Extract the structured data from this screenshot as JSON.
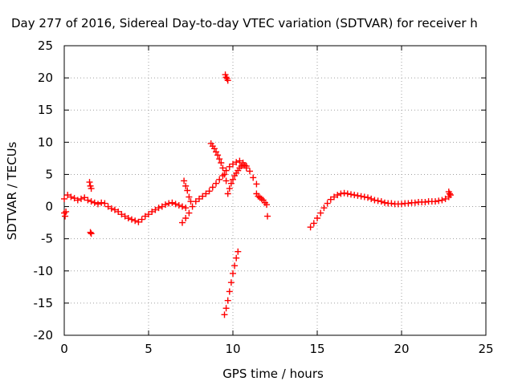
{
  "chart_data": {
    "type": "scatter",
    "title": "Day 277 of 2016, Sidereal Day-to-day VTEC variation (SDTVAR) for receiver h",
    "xlabel": "GPS time / hours",
    "ylabel": "SDTVAR / TECUs",
    "xlim": [
      0,
      25
    ],
    "ylim": [
      -20,
      25
    ],
    "xticks": [
      0,
      5,
      10,
      15,
      20,
      25
    ],
    "yticks": [
      -20,
      -15,
      -10,
      -5,
      0,
      5,
      10,
      15,
      20,
      25
    ],
    "xtick_labels": [
      "0",
      "5",
      "10",
      "15",
      "20",
      "25"
    ],
    "ytick_labels": [
      "-20",
      "-15",
      "-10",
      "-5",
      "0",
      "5",
      "10",
      "15",
      "20",
      "25"
    ],
    "grid": true,
    "marker": "plus",
    "color": "#ff0000",
    "segments": [
      {
        "x": [
          0.0,
          0.2,
          0.4,
          0.6,
          0.8,
          1.0,
          1.2,
          1.4,
          1.6,
          1.8,
          2.0,
          2.2,
          2.4,
          2.6,
          2.8,
          3.0,
          3.2,
          3.4,
          3.6,
          3.8,
          4.0,
          4.2,
          4.4,
          4.6,
          4.8,
          5.0,
          5.2,
          5.4,
          5.6,
          5.8,
          6.0,
          6.2,
          6.4,
          6.6,
          6.8,
          7.0,
          7.2
        ],
        "y": [
          1.2,
          1.8,
          1.5,
          1.3,
          1.0,
          1.2,
          1.4,
          1.0,
          0.8,
          0.6,
          0.4,
          0.6,
          0.5,
          0.0,
          -0.3,
          -0.5,
          -0.8,
          -1.2,
          -1.5,
          -1.8,
          -2.0,
          -2.2,
          -2.4,
          -2.0,
          -1.5,
          -1.2,
          -0.8,
          -0.5,
          -0.2,
          0.0,
          0.3,
          0.5,
          0.6,
          0.4,
          0.2,
          0.0,
          -0.2
        ]
      },
      {
        "x": [
          0.0,
          0.05,
          0.1
        ],
        "y": [
          -1.0,
          -1.5,
          -0.8
        ]
      },
      {
        "x": [
          1.5,
          1.55,
          1.6
        ],
        "y": [
          3.8,
          3.2,
          2.8
        ]
      },
      {
        "x": [
          1.55,
          1.6
        ],
        "y": [
          -4.0,
          -4.2
        ]
      },
      {
        "x": [
          7.1,
          7.2,
          7.3,
          7.4,
          7.5
        ],
        "y": [
          4.0,
          3.2,
          2.5,
          1.5,
          0.8
        ]
      },
      {
        "x": [
          7.0,
          7.2,
          7.4,
          7.6,
          7.8,
          8.0,
          8.2,
          8.4,
          8.6,
          8.8,
          9.0,
          9.2,
          9.4,
          9.6,
          9.8,
          10.0,
          10.2,
          10.4,
          10.6,
          10.8,
          11.0,
          11.2,
          11.4
        ],
        "y": [
          -2.5,
          -1.8,
          -1.0,
          0.0,
          0.8,
          1.2,
          1.6,
          2.0,
          2.4,
          3.0,
          3.6,
          4.2,
          4.8,
          5.6,
          6.2,
          6.6,
          6.9,
          7.1,
          6.8,
          6.3,
          5.5,
          4.5,
          3.5
        ]
      },
      {
        "x": [
          8.7,
          8.8,
          8.9,
          9.0,
          9.1,
          9.2,
          9.3,
          9.4,
          9.5,
          9.6
        ],
        "y": [
          9.8,
          9.4,
          9.0,
          8.5,
          8.0,
          7.4,
          6.8,
          6.0,
          5.0,
          4.0
        ]
      },
      {
        "x": [
          9.55,
          9.6,
          9.65,
          9.7
        ],
        "y": [
          20.5,
          20.1,
          19.9,
          19.6
        ]
      },
      {
        "x": [
          9.7,
          9.8,
          9.9,
          10.0,
          10.1,
          10.2,
          10.3,
          10.4,
          10.5,
          10.6,
          10.7,
          10.8
        ],
        "y": [
          2.0,
          2.8,
          3.6,
          4.2,
          4.8,
          5.2,
          5.6,
          6.0,
          6.3,
          6.5,
          6.4,
          6.0
        ]
      },
      {
        "x": [
          9.5,
          9.6,
          9.7,
          9.8,
          9.9,
          10.0,
          10.1,
          10.2,
          10.3
        ],
        "y": [
          -16.8,
          -15.8,
          -14.6,
          -13.2,
          -11.8,
          -10.4,
          -9.2,
          -8.0,
          -7.0
        ]
      },
      {
        "x": [
          11.4,
          11.5,
          11.6,
          11.7,
          11.8,
          11.9,
          12.0,
          12.05
        ],
        "y": [
          2.0,
          1.6,
          1.4,
          1.2,
          1.0,
          0.6,
          0.3,
          -1.5
        ]
      },
      {
        "x": [
          14.6,
          14.8,
          15.0,
          15.2,
          15.4,
          15.6,
          15.8,
          16.0,
          16.2,
          16.4,
          16.6,
          16.8,
          17.0,
          17.2,
          17.4,
          17.6,
          17.8,
          18.0,
          18.2,
          18.4,
          18.6,
          18.8,
          19.0,
          19.2,
          19.4,
          19.6,
          19.8,
          20.0,
          20.2,
          20.4,
          20.6,
          20.8,
          21.0,
          21.2,
          21.4,
          21.6,
          21.8,
          22.0,
          22.2,
          22.4,
          22.6,
          22.8
        ],
        "y": [
          -3.2,
          -2.6,
          -1.8,
          -1.0,
          -0.2,
          0.5,
          1.1,
          1.5,
          1.8,
          2.0,
          2.1,
          2.0,
          1.9,
          1.8,
          1.7,
          1.6,
          1.5,
          1.4,
          1.2,
          1.0,
          0.9,
          0.8,
          0.6,
          0.5,
          0.5,
          0.4,
          0.4,
          0.4,
          0.5,
          0.5,
          0.6,
          0.6,
          0.7,
          0.7,
          0.7,
          0.8,
          0.8,
          0.8,
          0.9,
          1.0,
          1.2,
          1.5
        ]
      },
      {
        "x": [
          22.8,
          22.85,
          22.9
        ],
        "y": [
          2.3,
          2.0,
          1.8
        ]
      }
    ]
  }
}
